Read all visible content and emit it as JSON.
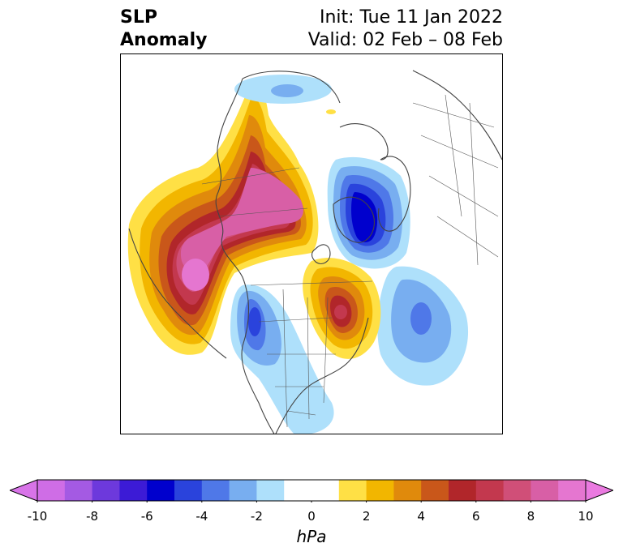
{
  "title": {
    "left_line1": "SLP",
    "left_line2": "Anomaly",
    "right_line1": "Init: Tue 11 Jan 2022",
    "right_line2": "Valid: 02 Feb – 08 Feb"
  },
  "colorbar": {
    "unit": "hPa",
    "ticks": [
      "-10",
      "-8",
      "-6",
      "-4",
      "-2",
      "0",
      "2",
      "4",
      "6",
      "8",
      "10"
    ],
    "colors": [
      "#cf6de6",
      "#a45ae3",
      "#6d39dc",
      "#3c1bd6",
      "#0000cd",
      "#2a43dc",
      "#4f78e8",
      "#78aef0",
      "#aee0fb",
      "#ffffff",
      "#ffffff",
      "#ffe045",
      "#f2b600",
      "#e08a0c",
      "#c9571a",
      "#b1262a",
      "#c3384e",
      "#d04f78",
      "#d85fa6",
      "#e576d0"
    ],
    "extend_low_color": "#d874e8",
    "extend_high_color": "#ea7ae0"
  },
  "map": {
    "anomalies": [
      {
        "region": "North Pacific / Alaska",
        "sign": "positive",
        "peak_hPa": 10
      },
      {
        "region": "Canadian Arctic / Greenland",
        "sign": "negative",
        "peak_hPa": -6
      },
      {
        "region": "Eastern Canada",
        "sign": "positive",
        "peak_hPa": 6
      },
      {
        "region": "Western US",
        "sign": "negative",
        "peak_hPa": -4
      },
      {
        "region": "North Atlantic",
        "sign": "negative",
        "peak_hPa": -4
      }
    ]
  }
}
